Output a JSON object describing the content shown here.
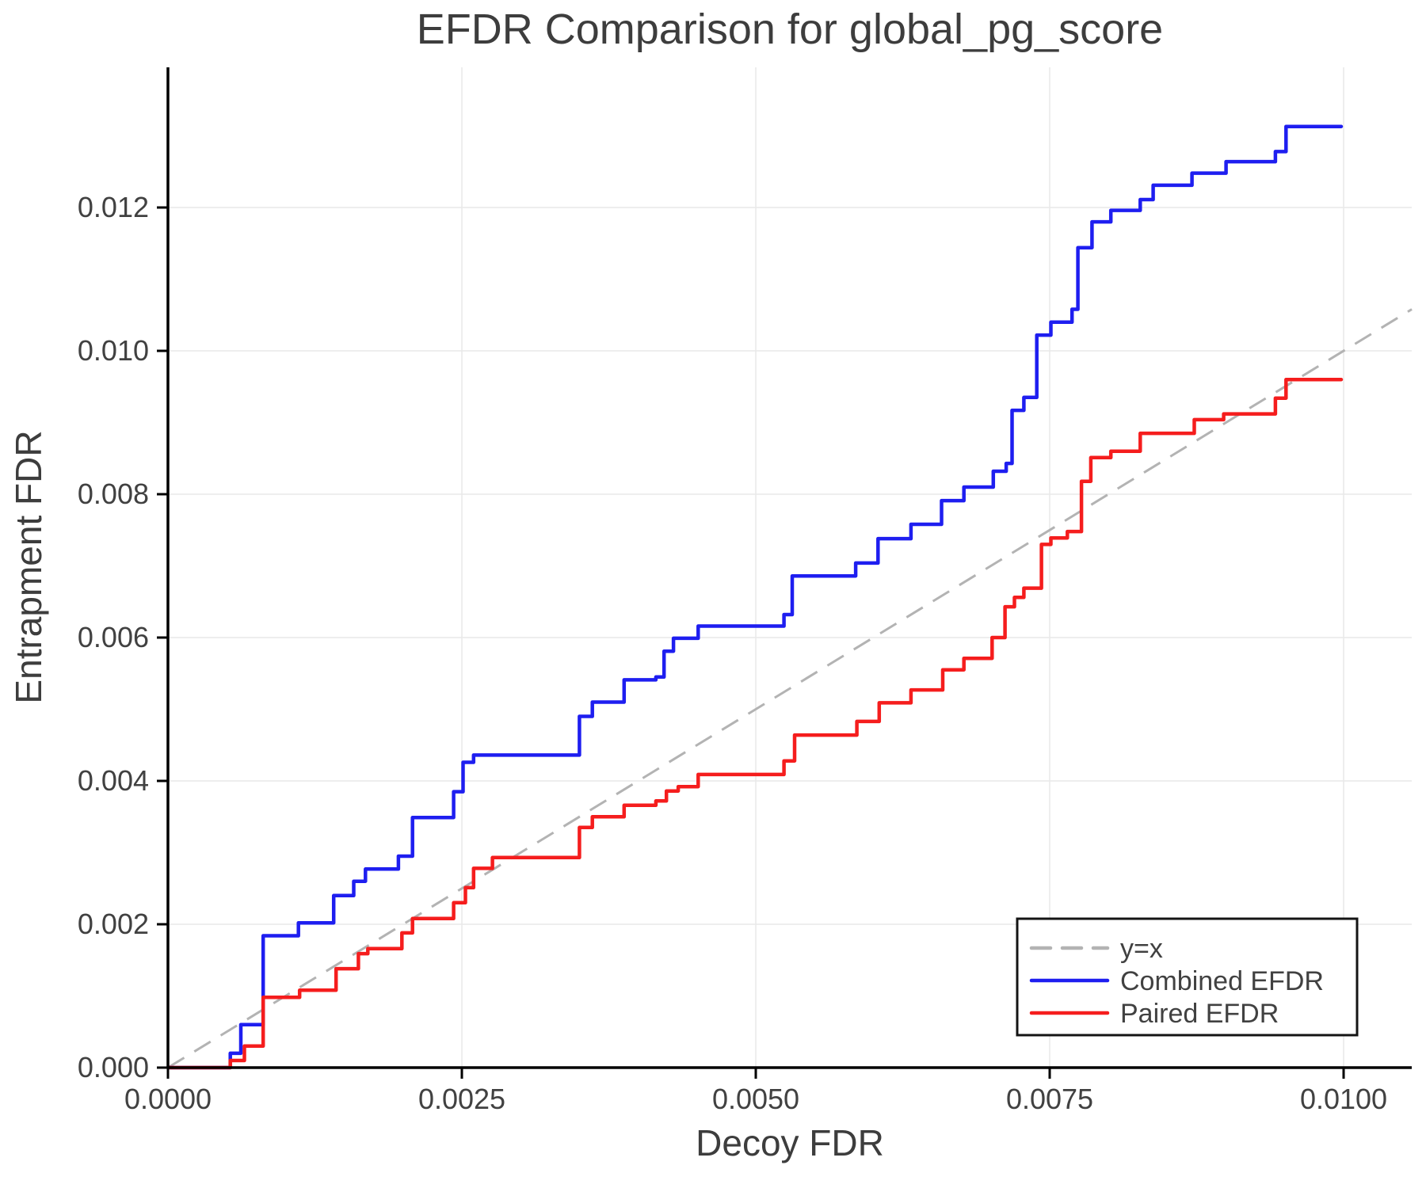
{
  "title": "EFDR Comparison for global_pg_score",
  "chart_data": {
    "type": "line",
    "subtype": "step-post",
    "title": "EFDR Comparison for global_pg_score",
    "xlabel": "Decoy FDR",
    "ylabel": "Entrapment FDR",
    "xlim": [
      0,
      0.01058
    ],
    "ylim": [
      0,
      0.01395
    ],
    "grid": true,
    "x_ticks": [
      {
        "value": 0.0,
        "label": "0.0000"
      },
      {
        "value": 0.0025,
        "label": "0.0025"
      },
      {
        "value": 0.005,
        "label": "0.0050"
      },
      {
        "value": 0.0075,
        "label": "0.0075"
      },
      {
        "value": 0.01,
        "label": "0.0100"
      }
    ],
    "y_ticks": [
      {
        "value": 0.0,
        "label": "0.000"
      },
      {
        "value": 0.002,
        "label": "0.002"
      },
      {
        "value": 0.004,
        "label": "0.004"
      },
      {
        "value": 0.006,
        "label": "0.006"
      },
      {
        "value": 0.008,
        "label": "0.008"
      },
      {
        "value": 0.01,
        "label": "0.010"
      },
      {
        "value": 0.012,
        "label": "0.012"
      }
    ],
    "reference_line": {
      "label": "y=x",
      "from": [
        0,
        0
      ],
      "to": [
        0.01058,
        0.01058
      ],
      "color": "#b3b3b3",
      "style": "dashed"
    },
    "series": [
      {
        "name": "Combined EFDR",
        "color": "#1e1ef0",
        "step": "post",
        "start": [
          0,
          0
        ],
        "end_x": 0.00998,
        "points": [
          [
            0.00053,
            0.0002
          ],
          [
            0.00062,
            0.0006
          ],
          [
            0.00081,
            0.00184
          ],
          [
            0.00111,
            0.00202
          ],
          [
            0.00141,
            0.0024
          ],
          [
            0.00158,
            0.0026
          ],
          [
            0.00168,
            0.00277
          ],
          [
            0.00196,
            0.00295
          ],
          [
            0.00208,
            0.00349
          ],
          [
            0.00243,
            0.00385
          ],
          [
            0.00251,
            0.00426
          ],
          [
            0.0026,
            0.00436
          ],
          [
            0.0035,
            0.0049
          ],
          [
            0.00361,
            0.0051
          ],
          [
            0.00388,
            0.00541
          ],
          [
            0.00415,
            0.00545
          ],
          [
            0.00422,
            0.00581
          ],
          [
            0.0043,
            0.00599
          ],
          [
            0.00451,
            0.00616
          ],
          [
            0.00524,
            0.00632
          ],
          [
            0.00531,
            0.00686
          ],
          [
            0.00585,
            0.00704
          ],
          [
            0.00604,
            0.00738
          ],
          [
            0.00632,
            0.00758
          ],
          [
            0.00658,
            0.00791
          ],
          [
            0.00677,
            0.0081
          ],
          [
            0.00702,
            0.00832
          ],
          [
            0.00713,
            0.00843
          ],
          [
            0.00718,
            0.00917
          ],
          [
            0.00728,
            0.00935
          ],
          [
            0.00739,
            0.01022
          ],
          [
            0.00751,
            0.0104
          ],
          [
            0.00769,
            0.01058
          ],
          [
            0.00774,
            0.01144
          ],
          [
            0.00786,
            0.0118
          ],
          [
            0.00802,
            0.01196
          ],
          [
            0.00827,
            0.01211
          ],
          [
            0.00838,
            0.01231
          ],
          [
            0.00871,
            0.01248
          ],
          [
            0.009,
            0.01264
          ],
          [
            0.00942,
            0.01278
          ],
          [
            0.00951,
            0.01313
          ]
        ]
      },
      {
        "name": "Paired EFDR",
        "color": "#f51d1d",
        "step": "post",
        "start": [
          0,
          0
        ],
        "end_x": 0.00998,
        "points": [
          [
            0.00053,
            0.0001
          ],
          [
            0.00065,
            0.0003
          ],
          [
            0.00081,
            0.00098
          ],
          [
            0.00112,
            0.00108
          ],
          [
            0.00143,
            0.00138
          ],
          [
            0.00162,
            0.00159
          ],
          [
            0.0017,
            0.00166
          ],
          [
            0.00199,
            0.00188
          ],
          [
            0.00208,
            0.00208
          ],
          [
            0.00243,
            0.0023
          ],
          [
            0.00253,
            0.00251
          ],
          [
            0.0026,
            0.00278
          ],
          [
            0.00276,
            0.00293
          ],
          [
            0.0035,
            0.00335
          ],
          [
            0.00361,
            0.0035
          ],
          [
            0.00388,
            0.00366
          ],
          [
            0.00415,
            0.00372
          ],
          [
            0.00424,
            0.00386
          ],
          [
            0.00434,
            0.00392
          ],
          [
            0.00451,
            0.00409
          ],
          [
            0.00524,
            0.00428
          ],
          [
            0.00533,
            0.00464
          ],
          [
            0.00586,
            0.00483
          ],
          [
            0.00605,
            0.00509
          ],
          [
            0.00632,
            0.00527
          ],
          [
            0.00659,
            0.00555
          ],
          [
            0.00677,
            0.00571
          ],
          [
            0.00701,
            0.006
          ],
          [
            0.00712,
            0.00643
          ],
          [
            0.0072,
            0.00656
          ],
          [
            0.00728,
            0.00669
          ],
          [
            0.00743,
            0.0073
          ],
          [
            0.00751,
            0.00739
          ],
          [
            0.00765,
            0.00748
          ],
          [
            0.00777,
            0.00818
          ],
          [
            0.00785,
            0.00851
          ],
          [
            0.00802,
            0.0086
          ],
          [
            0.00827,
            0.00885
          ],
          [
            0.00873,
            0.00904
          ],
          [
            0.00898,
            0.00912
          ],
          [
            0.00942,
            0.00934
          ],
          [
            0.00951,
            0.0096
          ]
        ]
      }
    ],
    "legend": {
      "position": "lower right",
      "entries": [
        {
          "label": "y=x",
          "color": "#b3b3b3",
          "style": "dashed"
        },
        {
          "label": "Combined EFDR",
          "color": "#1e1ef0",
          "style": "solid"
        },
        {
          "label": "Paired EFDR",
          "color": "#f51d1d",
          "style": "solid"
        }
      ]
    }
  },
  "colors": {
    "background": "#ffffff",
    "grid": "#e9e9e9",
    "spine": "#000000",
    "tick_text": "#414141",
    "label_text": "#3d3d3d",
    "legend_border": "#141414"
  }
}
